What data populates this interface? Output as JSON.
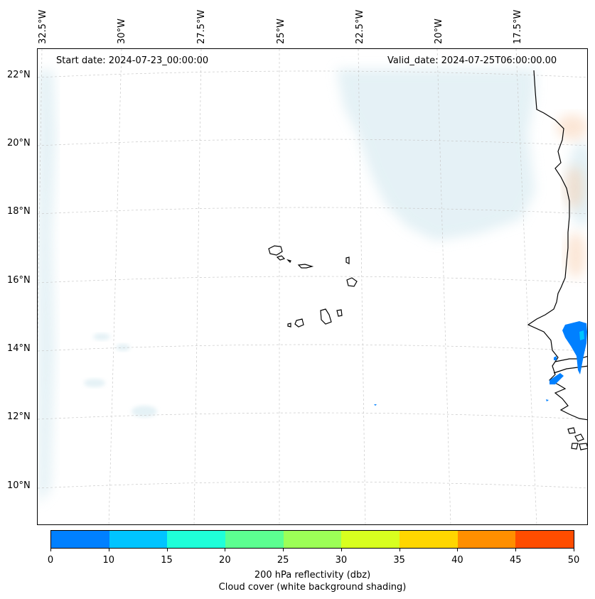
{
  "map": {
    "start_date": "Start date: 2024-07-23_00:00:00",
    "valid_date": "Valid_date: 2024-07-25T06:00:00.00",
    "lon_labels": [
      "32.5°W",
      "30°W",
      "27.5°W",
      "25°W",
      "22.5°W",
      "20°W",
      "17.5°W"
    ],
    "lat_labels": [
      "22°N",
      "20°N",
      "18°N",
      "16°N",
      "14°N",
      "12°N",
      "10°N"
    ],
    "land_color": "#000000",
    "cloud_color": "#cfe6ee",
    "reflectivity_color": "#0080ff"
  },
  "colorbar": {
    "colors": [
      "#0080ff",
      "#00c4ff",
      "#1fffd9",
      "#5cff91",
      "#9cff57",
      "#d8ff1f",
      "#ffd600",
      "#ff8f00",
      "#ff4d00"
    ],
    "ticks": [
      "0",
      "10",
      "15",
      "20",
      "25",
      "30",
      "35",
      "40",
      "45",
      "50"
    ],
    "label_line1": "200 hPa reflectivity (dbz)",
    "label_line2": "Cloud cover (white background shading)"
  }
}
